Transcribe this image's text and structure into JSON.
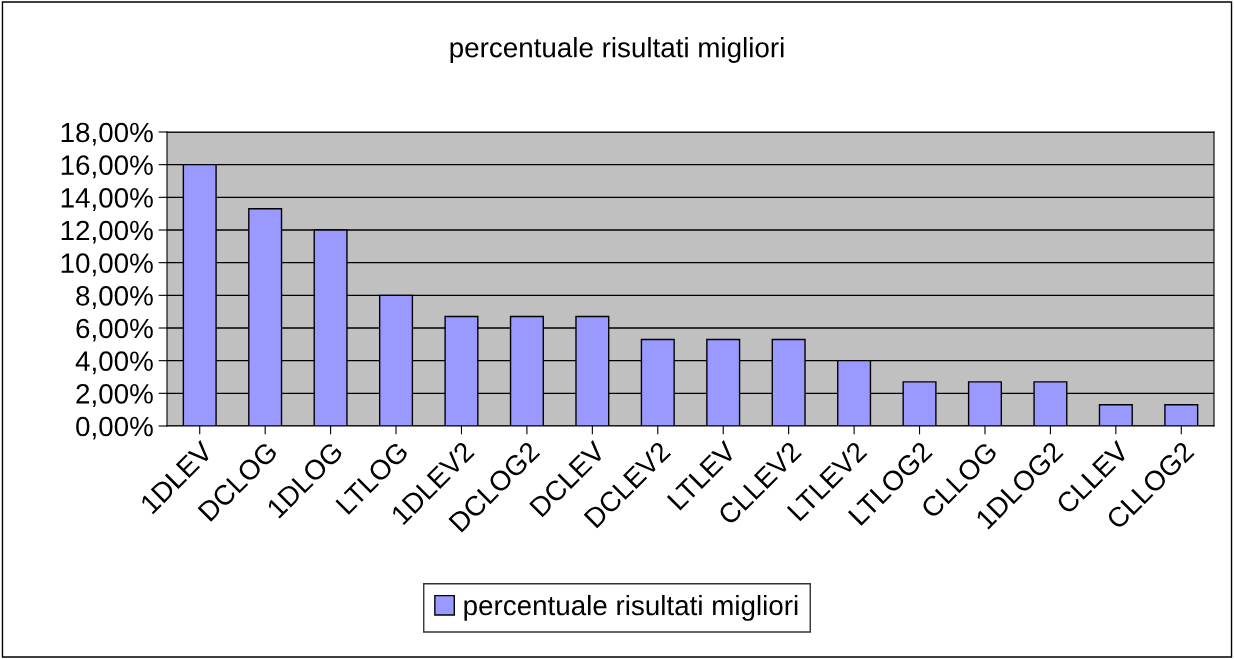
{
  "chart_data": {
    "type": "bar",
    "title": "percentuale risultati migliori",
    "categories": [
      "1DLEV",
      "DCLOG",
      "1DLOG",
      "LTLOG",
      "1DLEV2",
      "DCLOG2",
      "DCLEV",
      "DCLEV2",
      "LTLEV",
      "CLLEV2",
      "LTLEV2",
      "LTLOG2",
      "CLLOG",
      "1DLOG2",
      "CLLEV",
      "CLLOG2"
    ],
    "series": [
      {
        "name": "percentuale risultati migliori",
        "color": "#9999ff",
        "values": [
          16.0,
          13.3,
          12.0,
          8.0,
          6.7,
          6.7,
          6.7,
          5.3,
          5.3,
          5.3,
          4.0,
          2.7,
          2.7,
          2.7,
          1.3,
          1.3
        ]
      }
    ],
    "ylim": [
      0,
      18
    ],
    "yticks": [
      {
        "value": 0,
        "label": "0,00%"
      },
      {
        "value": 2,
        "label": "2,00%"
      },
      {
        "value": 4,
        "label": "4,00%"
      },
      {
        "value": 6,
        "label": "6,00%"
      },
      {
        "value": 8,
        "label": "8,00%"
      },
      {
        "value": 10,
        "label": "10,00%"
      },
      {
        "value": 12,
        "label": "12,00%"
      },
      {
        "value": 14,
        "label": "14,00%"
      },
      {
        "value": 16,
        "label": "16,00%"
      },
      {
        "value": 18,
        "label": "18,00%"
      }
    ],
    "grid": "y",
    "legend": "bottom"
  }
}
